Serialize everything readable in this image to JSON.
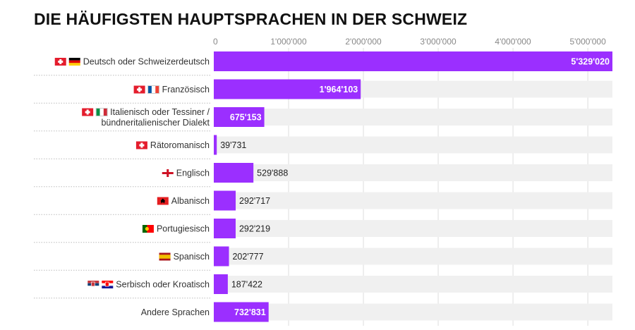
{
  "title": "DIE HÄUFIGSTEN HAUPTSPRACHEN IN DER SCHWEIZ",
  "colors": {
    "bar": "#9b2fff",
    "track": "#f0f0f0",
    "grid": "#dddddd"
  },
  "chart_data": {
    "type": "bar",
    "orientation": "horizontal",
    "title": "DIE HÄUFIGSTEN HAUPTSPRACHEN IN DER SCHWEIZ",
    "xlim": [
      0,
      5329020
    ],
    "grid": true,
    "x_ticks": [
      {
        "value": 0,
        "label": "0"
      },
      {
        "value": 1000000,
        "label": "1'000'000"
      },
      {
        "value": 2000000,
        "label": "2'000'000"
      },
      {
        "value": 3000000,
        "label": "3'000'000"
      },
      {
        "value": 4000000,
        "label": "4'000'000"
      },
      {
        "value": 5000000,
        "label": "5'000'000"
      }
    ],
    "categories": [
      {
        "label": [
          "Deutsch oder Schweizerdeutsch"
        ],
        "flags": [
          "ch",
          "de"
        ]
      },
      {
        "label": [
          "Französisch"
        ],
        "flags": [
          "ch",
          "fr"
        ]
      },
      {
        "label": [
          "Italienisch oder Tessiner /",
          "bündneritalienischer Dialekt"
        ],
        "flags": [
          "ch",
          "it"
        ]
      },
      {
        "label": [
          "Rätoromanisch"
        ],
        "flags": [
          "ch"
        ]
      },
      {
        "label": [
          "Englisch"
        ],
        "flags": [
          "en"
        ]
      },
      {
        "label": [
          "Albanisch"
        ],
        "flags": [
          "al"
        ]
      },
      {
        "label": [
          "Portugiesisch"
        ],
        "flags": [
          "pt"
        ]
      },
      {
        "label": [
          "Spanisch"
        ],
        "flags": [
          "es"
        ]
      },
      {
        "label": [
          "Serbisch oder Kroatisch"
        ],
        "flags": [
          "rs",
          "hr"
        ]
      },
      {
        "label": [
          "Andere Sprachen"
        ],
        "flags": []
      }
    ],
    "values": [
      5329020,
      1964103,
      675153,
      39731,
      529888,
      292717,
      292219,
      202777,
      187422,
      732831
    ],
    "value_labels": [
      "5'329'020",
      "1'964'103",
      "675'153",
      "39'731",
      "529'888",
      "292'717",
      "292'219",
      "202'777",
      "187'422",
      "732'831"
    ]
  }
}
